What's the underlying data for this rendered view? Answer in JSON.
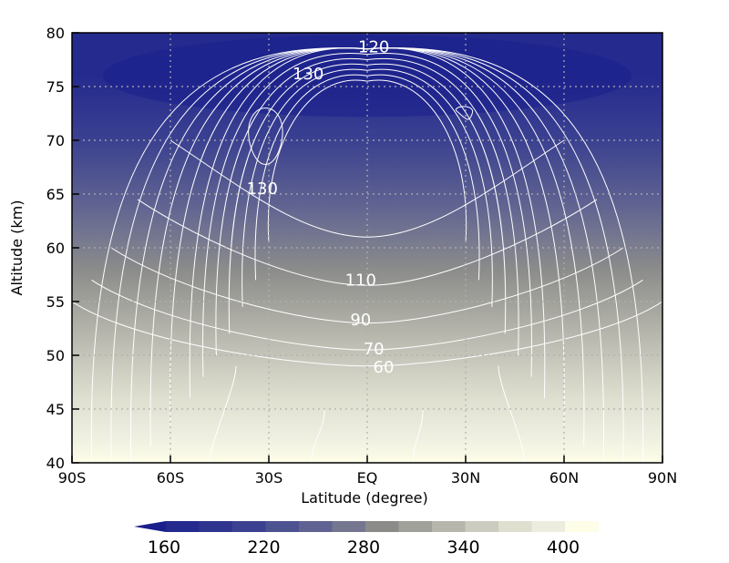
{
  "chart_data": {
    "type": "heatmap",
    "xlabel": "Latitude (degree)",
    "ylabel": "Altitude (km)",
    "xlim": [
      -90,
      90
    ],
    "ylim": [
      40,
      80
    ],
    "x_ticks": [
      {
        "value": -90,
        "label": "90S"
      },
      {
        "value": -60,
        "label": "60S"
      },
      {
        "value": -30,
        "label": "30S"
      },
      {
        "value": 0,
        "label": "EQ"
      },
      {
        "value": 30,
        "label": "30N"
      },
      {
        "value": 60,
        "label": "60N"
      },
      {
        "value": 90,
        "label": "90N"
      }
    ],
    "y_ticks": [
      {
        "value": 40,
        "label": "40"
      },
      {
        "value": 45,
        "label": "45"
      },
      {
        "value": 50,
        "label": "50"
      },
      {
        "value": 55,
        "label": "55"
      },
      {
        "value": 60,
        "label": "60"
      },
      {
        "value": 65,
        "label": "65"
      },
      {
        "value": 70,
        "label": "70"
      },
      {
        "value": 75,
        "label": "75"
      },
      {
        "value": 80,
        "label": "80"
      }
    ],
    "grid": true,
    "colorbar": {
      "levels": [
        160,
        180,
        200,
        220,
        240,
        260,
        280,
        300,
        320,
        340,
        360,
        380,
        400
      ],
      "colors": [
        "#1a1f8c",
        "#252a8e",
        "#2f358f",
        "#3b4190",
        "#4d5290",
        "#606391",
        "#757790",
        "#8b8c8a",
        "#a1a19b",
        "#b6b6ad",
        "#cbcbbf",
        "#dfdfd0",
        "#ececdf",
        "#fdfde8"
      ],
      "tick_labels": [
        {
          "value": 160,
          "label": "160"
        },
        {
          "value": 220,
          "label": "220"
        },
        {
          "value": 280,
          "label": "280"
        },
        {
          "value": 340,
          "label": "340"
        },
        {
          "value": 400,
          "label": "400"
        }
      ],
      "extend": "min"
    },
    "filled_field": {
      "note_levels": "temperature-like field decreasing with altitude",
      "bands": [
        {
          "y": 40,
          "value": 400
        },
        {
          "y": 43,
          "value": 380
        },
        {
          "y": 46,
          "value": 365
        },
        {
          "y": 49,
          "value": 345
        },
        {
          "y": 52,
          "value": 325
        },
        {
          "y": 55,
          "value": 305
        },
        {
          "y": 58,
          "value": 285
        },
        {
          "y": 61,
          "value": 265
        },
        {
          "y": 64,
          "value": 245
        },
        {
          "y": 67,
          "value": 225
        },
        {
          "y": 70,
          "value": 205
        },
        {
          "y": 73,
          "value": 185
        },
        {
          "y": 76,
          "value": 170
        },
        {
          "y": 80,
          "value": 160
        }
      ]
    },
    "contours": [
      {
        "level": 120,
        "label": "120",
        "label_pos": [
          2,
          78.7
        ]
      },
      {
        "level": 130,
        "label": "130",
        "label_pos": [
          -18,
          76.2
        ]
      },
      {
        "level": 130,
        "label": "130",
        "label_pos": [
          -32,
          65.5
        ]
      },
      {
        "level": 110,
        "label": "110",
        "label_pos": [
          -2,
          57.0
        ]
      },
      {
        "level": 90,
        "label": "90",
        "label_pos": [
          -2,
          53.3
        ]
      },
      {
        "level": 70,
        "label": "70",
        "label_pos": [
          2,
          50.6
        ]
      },
      {
        "level": 60,
        "label": "60",
        "label_pos": [
          5,
          48.9
        ]
      }
    ]
  }
}
